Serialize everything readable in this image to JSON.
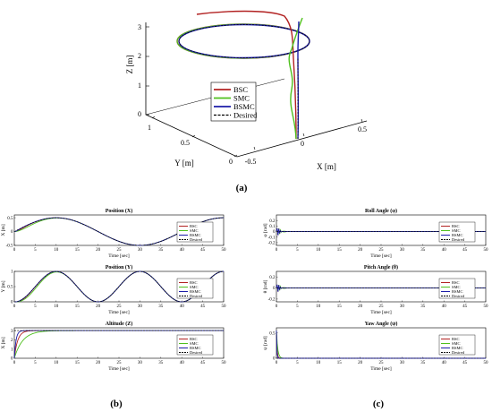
{
  "colors": {
    "BSC": "#b22222",
    "SMC": "#4fc01e",
    "BSMC": "#1c1ca8",
    "Desired": "#000000"
  },
  "panel_labels": [
    "(a)",
    "(b)",
    "(c)"
  ],
  "chart_data": [
    {
      "panel": "(a)",
      "type": "line",
      "projection": "3d",
      "xlabel": "X [m]",
      "ylabel": "Y [m]",
      "zlabel": "Z [m]",
      "x_ticks": [
        "-0.5",
        "0",
        "0.5"
      ],
      "y_ticks": [
        "0",
        "0.5",
        "1"
      ],
      "z_ticks": [
        "0",
        "1",
        "2",
        "3"
      ],
      "legend": [
        "BSC",
        "SMC",
        "BSMC",
        "Desired"
      ],
      "legend_position": "center",
      "grid": false
    },
    {
      "panel": "(b)",
      "title": "Position (X)",
      "type": "line",
      "xlabel": "Time [sec]",
      "ylabel": "X [m]",
      "xlim": [
        0,
        50
      ],
      "ylim": [
        -0.5,
        0.6
      ],
      "x_ticks": [
        "0",
        "5",
        "10",
        "15",
        "20",
        "25",
        "30",
        "35",
        "40",
        "45",
        "50"
      ],
      "y_ticks": [
        "-0.5",
        "0",
        "0.5"
      ],
      "y_tick_values": [
        -0.5,
        0,
        0.5
      ],
      "legend": [
        "BSC",
        "SMC",
        "BSMC",
        "Desired"
      ],
      "legend_position": "right",
      "desired": {
        "kind": "sin",
        "amp": 0.5,
        "period": 40,
        "offset": 0,
        "init": 0
      },
      "series": [
        {
          "name": "BSC",
          "rise": 1.2
        },
        {
          "name": "SMC",
          "rise": 2.5
        },
        {
          "name": "BSMC",
          "rise": 0.6
        }
      ]
    },
    {
      "panel": "(b)",
      "title": "Position (Y)",
      "type": "line",
      "xlabel": "Time [sec]",
      "ylabel": "Y [m]",
      "xlim": [
        0,
        50
      ],
      "ylim": [
        0,
        1
      ],
      "x_ticks": [
        "0",
        "5",
        "10",
        "15",
        "20",
        "25",
        "30",
        "35",
        "40",
        "45",
        "50"
      ],
      "y_ticks": [
        "0",
        "0.5",
        "1"
      ],
      "y_tick_values": [
        0,
        0.5,
        1
      ],
      "legend": [
        "BSC",
        "SMC",
        "BSMC",
        "Desired"
      ],
      "legend_position": "right",
      "desired": {
        "kind": "1-cos",
        "amp": 0.5,
        "period": 20,
        "offset": 0.5,
        "init": 0
      },
      "series": [
        {
          "name": "BSC",
          "rise": 1.2
        },
        {
          "name": "SMC",
          "rise": 2.5
        },
        {
          "name": "BSMC",
          "rise": 0.6
        }
      ]
    },
    {
      "panel": "(b)",
      "title": "Altitude (Z)",
      "type": "line",
      "xlabel": "Time [sec]",
      "ylabel": "X [m]",
      "xlim": [
        0,
        50
      ],
      "ylim": [
        0,
        3.3
      ],
      "x_ticks": [
        "0",
        "5",
        "10",
        "15",
        "20",
        "25",
        "30",
        "35",
        "40",
        "45",
        "50"
      ],
      "y_ticks": [
        "0",
        "1",
        "2",
        "3"
      ],
      "y_tick_values": [
        0,
        1,
        2,
        3
      ],
      "legend": [
        "BSC",
        "SMC",
        "BSMC",
        "Desired"
      ],
      "legend_position": "right",
      "desired": {
        "kind": "const",
        "value": 3,
        "init": 0
      },
      "series": [
        {
          "name": "BSC",
          "rise": 0.8
        },
        {
          "name": "SMC",
          "rise": 2.0
        },
        {
          "name": "BSMC",
          "rise": 0.4
        }
      ]
    },
    {
      "panel": "(c)",
      "title": "Roll Angle (φ)",
      "type": "line",
      "xlabel": "Time [sec]",
      "ylabel": "φ [rad]",
      "xlim": [
        0,
        50
      ],
      "ylim": [
        -0.25,
        0.3
      ],
      "x_ticks": [
        "0",
        "5",
        "10",
        "15",
        "20",
        "25",
        "30",
        "35",
        "40",
        "45",
        "50"
      ],
      "y_ticks": [
        "-0.2",
        "-0.1",
        "0",
        "0.1",
        "0.2"
      ],
      "y_tick_values": [
        -0.2,
        -0.1,
        0,
        0.1,
        0.2
      ],
      "legend": [
        "BSC",
        "SMC",
        "BSMC",
        "Desired"
      ],
      "legend_position": "right",
      "desired": {
        "kind": "const",
        "value": 0,
        "init": 0
      },
      "series": [
        {
          "name": "BSC",
          "spike": 0.18,
          "decay": 0.5
        },
        {
          "name": "SMC",
          "spike": 0.12,
          "decay": 0.8
        },
        {
          "name": "BSMC",
          "spike": 0.22,
          "decay": 0.4
        }
      ]
    },
    {
      "panel": "(c)",
      "title": "Pitch Angle (θ)",
      "type": "line",
      "xlabel": "Time [sec]",
      "ylabel": "θ [rad]",
      "xlim": [
        0,
        50
      ],
      "ylim": [
        -0.25,
        0.3
      ],
      "x_ticks": [
        "0",
        "5",
        "10",
        "15",
        "20",
        "25",
        "30",
        "35",
        "40",
        "45",
        "50"
      ],
      "y_ticks": [
        "-0.2",
        "0",
        "0.2"
      ],
      "y_tick_values": [
        -0.2,
        0,
        0.2
      ],
      "legend": [
        "BSC",
        "SMC",
        "BSMC",
        "Desired"
      ],
      "legend_position": "right",
      "desired": {
        "kind": "const",
        "value": 0,
        "init": 0
      },
      "series": [
        {
          "name": "BSC",
          "spike": 0.18,
          "decay": 0.5
        },
        {
          "name": "SMC",
          "spike": 0.12,
          "decay": 0.8
        },
        {
          "name": "BSMC",
          "spike": 0.22,
          "decay": 0.4
        }
      ]
    },
    {
      "panel": "(c)",
      "title": "Yaw Angle (ψ)",
      "type": "line",
      "xlabel": "Time [sec]",
      "ylabel": "ψ [rad]",
      "xlim": [
        0,
        50
      ],
      "ylim": [
        0,
        0.6
      ],
      "x_ticks": [
        "0",
        "5",
        "10",
        "15",
        "20",
        "25",
        "30",
        "35",
        "40",
        "45",
        "50"
      ],
      "y_ticks": [
        "0",
        "0.5"
      ],
      "y_tick_values": [
        0,
        0.5
      ],
      "legend": [
        "BSC",
        "SMC",
        "BSMC",
        "Desired"
      ],
      "legend_position": "right",
      "desired": {
        "kind": "const",
        "value": 0,
        "init": 0.55
      },
      "series": [
        {
          "name": "BSC",
          "init": 0.55,
          "decay": 0.15
        },
        {
          "name": "SMC",
          "init": 0.55,
          "decay": 0.3
        },
        {
          "name": "BSMC",
          "init": 0.55,
          "decay": 0.1
        }
      ]
    }
  ]
}
